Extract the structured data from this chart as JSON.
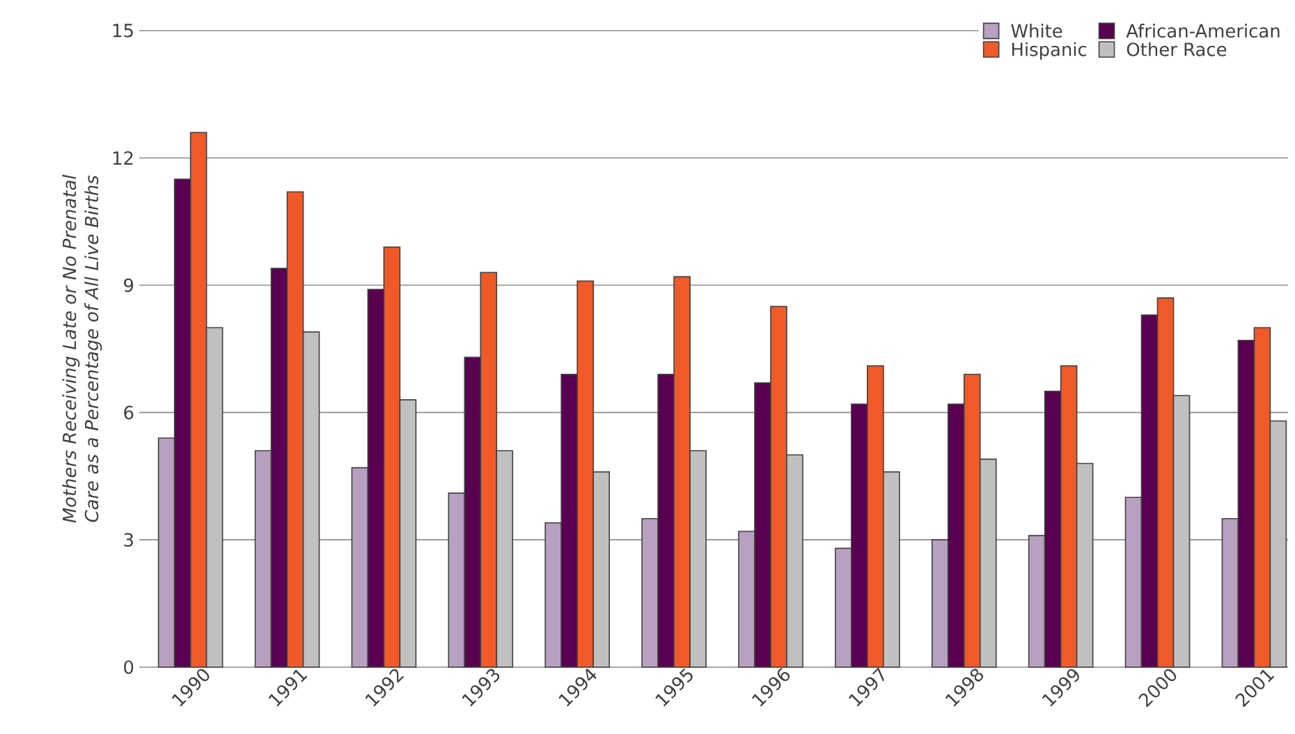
{
  "chart_data": {
    "type": "bar",
    "ylabel": "Mothers Receiving Late or No Prenatal Care as a Percentage of All Live Births",
    "categories": [
      "1990",
      "1991",
      "1992",
      "1993",
      "1994",
      "1995",
      "1996",
      "1997",
      "1998",
      "1999",
      "2000",
      "2001"
    ],
    "series": [
      {
        "name": "White",
        "color": "#b8a0c0",
        "values": [
          5.4,
          5.1,
          4.7,
          4.1,
          3.4,
          3.5,
          3.2,
          2.8,
          3.0,
          3.1,
          4.0,
          3.5
        ]
      },
      {
        "name": "African-American",
        "color": "#5a0050",
        "values": [
          11.5,
          9.4,
          8.9,
          7.3,
          6.9,
          6.9,
          6.7,
          6.2,
          6.2,
          6.5,
          8.3,
          7.7
        ]
      },
      {
        "name": "Hispanic",
        "color": "#f05a28",
        "values": [
          12.6,
          11.2,
          9.9,
          9.3,
          9.1,
          9.2,
          8.5,
          7.1,
          6.9,
          7.1,
          8.7,
          8.0
        ]
      },
      {
        "name": "Other Race",
        "color": "#c0c0c0",
        "values": [
          8.0,
          7.9,
          6.3,
          5.1,
          4.6,
          5.1,
          5.0,
          4.6,
          4.9,
          4.8,
          6.4,
          5.8
        ]
      }
    ],
    "ylim": [
      0,
      15
    ],
    "yticks": [
      0,
      3,
      6,
      9,
      12,
      15
    ],
    "grid": "y",
    "legend": "top right"
  }
}
